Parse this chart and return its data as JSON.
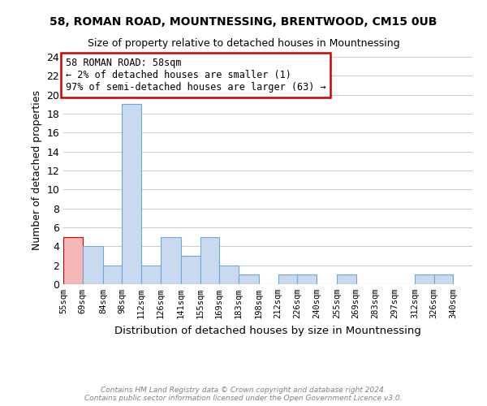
{
  "title": "58, ROMAN ROAD, MOUNTNESSING, BRENTWOOD, CM15 0UB",
  "subtitle": "Size of property relative to detached houses in Mountnessing",
  "ylabel": "Number of detached properties",
  "xlabel_actual": "Distribution of detached houses by size in Mountnessing",
  "bin_labels": [
    "55sqm",
    "69sqm",
    "84sqm",
    "98sqm",
    "112sqm",
    "126sqm",
    "141sqm",
    "155sqm",
    "169sqm",
    "183sqm",
    "198sqm",
    "212sqm",
    "226sqm",
    "240sqm",
    "255sqm",
    "269sqm",
    "283sqm",
    "297sqm",
    "312sqm",
    "326sqm",
    "340sqm"
  ],
  "bin_edges": [
    55,
    69,
    84,
    98,
    112,
    126,
    141,
    155,
    169,
    183,
    198,
    212,
    226,
    240,
    255,
    269,
    283,
    297,
    312,
    326,
    340
  ],
  "heights": [
    5,
    4,
    2,
    19,
    2,
    5,
    3,
    5,
    2,
    1,
    0,
    1,
    1,
    0,
    1,
    0,
    0,
    0,
    1,
    1
  ],
  "red_bar_indices": [
    0
  ],
  "bar_color": "#c9d9f0",
  "bar_edge_color": "#6fa8d6",
  "red_bar_color": "#f4b8b8",
  "red_bar_edge_color": "#cc0000",
  "annotation_title": "58 ROMAN ROAD: 58sqm",
  "annotation_line1": "← 2% of detached houses are smaller (1)",
  "annotation_line2": "97% of semi-detached houses are larger (63) →",
  "ylim": [
    0,
    24
  ],
  "yticks": [
    0,
    2,
    4,
    6,
    8,
    10,
    12,
    14,
    16,
    18,
    20,
    22,
    24
  ],
  "footer_line1": "Contains HM Land Registry data © Crown copyright and database right 2024.",
  "footer_line2": "Contains public sector information licensed under the Open Government Licence v3.0."
}
